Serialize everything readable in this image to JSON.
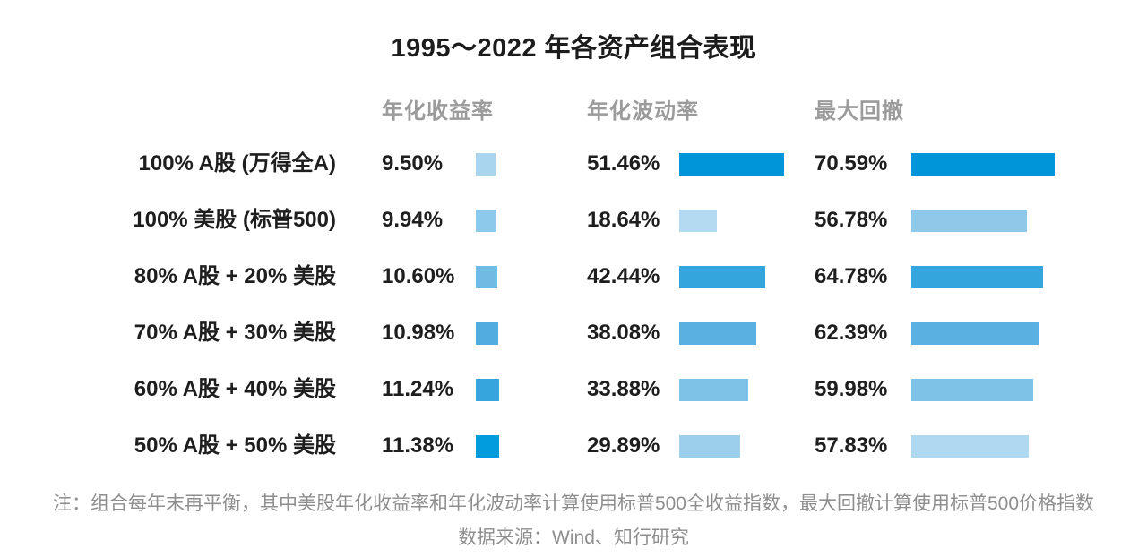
{
  "title": "1995～2022 年各资产组合表现",
  "columns": [
    "年化收益率",
    "年化波动率",
    "最大回撤"
  ],
  "rows": [
    {
      "label": "100% A股 (万得全A)",
      "return": "9.50%",
      "volatility": "51.46%",
      "drawdown": "70.59%"
    },
    {
      "label": "100% 美股 (标普500)",
      "return": "9.94%",
      "volatility": "18.64%",
      "drawdown": "56.78%"
    },
    {
      "label": "80% A股 + 20% 美股",
      "return": "10.60%",
      "volatility": "42.44%",
      "drawdown": "64.78%"
    },
    {
      "label": "70% A股 + 30% 美股",
      "return": "10.98%",
      "volatility": "38.08%",
      "drawdown": "62.39%"
    },
    {
      "label": "60% A股 + 40% 美股",
      "return": "11.24%",
      "volatility": "33.88%",
      "drawdown": "59.98%"
    },
    {
      "label": "50% A股 + 50% 美股",
      "return": "11.38%",
      "volatility": "29.89%",
      "drawdown": "57.83%"
    }
  ],
  "note": "注：组合每年末再平衡，其中美股年化收益率和年化波动率计算使用标普500全收益指数，最大回撤计算使用标普500价格指数",
  "source": "数据来源：Wind、知行研究",
  "colors": {
    "background": "#FFFFFF",
    "title_text": "#1C1C1C",
    "header_text": "#9B9B9B",
    "value_text": "#1E1E1E",
    "note_text": "#8E8E8E",
    "accent_dark_blue": "#0095D8",
    "accent_light_blue": "#B4DAF1"
  },
  "chart_data": {
    "type": "bar",
    "orientation": "horizontal",
    "title": "1995～2022 年各资产组合表现",
    "categories": [
      "100% A股 (万得全A)",
      "100% 美股 (标普500)",
      "80% A股 + 20% 美股",
      "70% A股 + 30% 美股",
      "60% A股 + 40% 美股",
      "50% A股 + 50% 美股"
    ],
    "series": [
      {
        "name": "年化收益率",
        "values": [
          9.5,
          9.94,
          10.6,
          10.98,
          11.24,
          11.38
        ],
        "labels": [
          "9.50%",
          "9.94%",
          "10.60%",
          "10.98%",
          "11.24%",
          "11.38%"
        ],
        "bar_colors": [
          "#A9D5EF",
          "#8CC9EA",
          "#70BBE4",
          "#52ADDF",
          "#36A5DE",
          "#009CDC"
        ]
      },
      {
        "name": "年化波动率",
        "values": [
          51.46,
          18.64,
          42.44,
          38.08,
          33.88,
          29.89
        ],
        "labels": [
          "51.46%",
          "18.64%",
          "42.44%",
          "38.08%",
          "33.88%",
          "29.89%"
        ],
        "bar_colors": [
          "#0095D8",
          "#B4DAF1",
          "#35A5DE",
          "#5AB1E1",
          "#7FC2E7",
          "#9BCFEC"
        ]
      },
      {
        "name": "最大回撤",
        "values": [
          70.59,
          56.78,
          64.78,
          62.39,
          59.98,
          57.83
        ],
        "labels": [
          "70.59%",
          "56.78%",
          "64.78%",
          "62.39%",
          "59.98%",
          "57.83%"
        ],
        "bar_colors": [
          "#0095D8",
          "#8FC9EA",
          "#35A5DE",
          "#5AB1E1",
          "#7FC2E7",
          "#AED9F0"
        ]
      }
    ],
    "value_axis_unit": "%",
    "value_axis_range": [
      0,
      75
    ],
    "grid": false,
    "legend": "none",
    "data_labels": "left-of-bar"
  }
}
